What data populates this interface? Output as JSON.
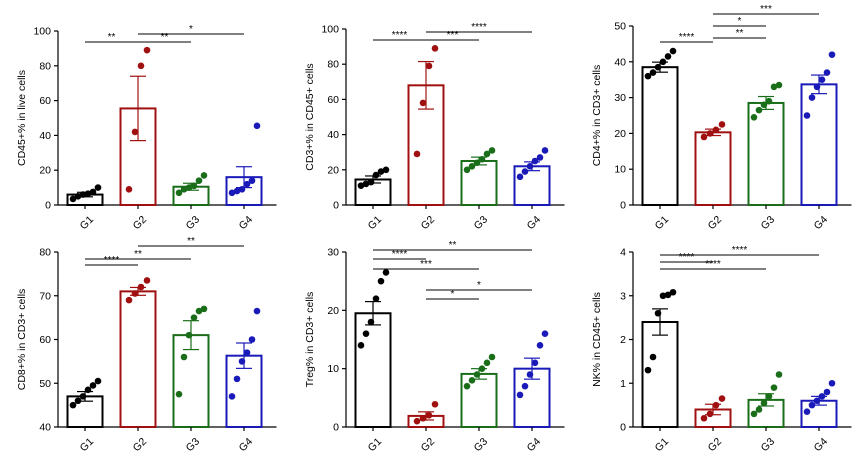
{
  "groups": [
    "G1",
    "G2",
    "G3",
    "G4"
  ],
  "colors": {
    "G1": "#000000",
    "G2": "#a01010",
    "G3": "#1a6e1a",
    "G4": "#1a1ab8"
  },
  "chart_data": [
    {
      "type": "bar",
      "ylabel": "CD45+% in live cells",
      "ylim": [
        0,
        100
      ],
      "yticks": [
        0,
        20,
        40,
        60,
        80,
        100
      ],
      "categories": [
        "G1",
        "G2",
        "G3",
        "G4"
      ],
      "means": [
        6,
        55.5,
        10.5,
        16
      ],
      "sem": [
        1.3,
        18.5,
        2.0,
        6.0
      ],
      "points": [
        [
          3.5,
          5,
          6,
          6.5,
          7.5,
          10
        ],
        [
          9,
          42,
          80,
          89
        ],
        [
          7,
          9,
          10,
          11,
          14,
          17
        ],
        [
          7,
          8,
          9,
          12,
          14,
          45.5
        ]
      ],
      "significance": [
        {
          "from": "G1",
          "to": "G2",
          "label": "**"
        },
        {
          "from": "G2",
          "to": "G3",
          "label": "**"
        },
        {
          "from": "G2",
          "to": "G4",
          "label": "*"
        }
      ]
    },
    {
      "type": "bar",
      "ylabel": "CD3+% in CD45+ cells",
      "ylim": [
        0,
        100
      ],
      "yticks": [
        0,
        20,
        40,
        60,
        80,
        100
      ],
      "categories": [
        "G1",
        "G2",
        "G3",
        "G4"
      ],
      "means": [
        14.5,
        68,
        25,
        22
      ],
      "sem": [
        2.0,
        13.5,
        2.2,
        2.5
      ],
      "points": [
        [
          11,
          12,
          13,
          17,
          19,
          20
        ],
        [
          29,
          58,
          79,
          89
        ],
        [
          20,
          22,
          24,
          26,
          29,
          31
        ],
        [
          16,
          19,
          22,
          25,
          27,
          31
        ]
      ],
      "significance": [
        {
          "from": "G1",
          "to": "G2",
          "label": "****"
        },
        {
          "from": "G2",
          "to": "G3",
          "label": "***"
        },
        {
          "from": "G2",
          "to": "G4",
          "label": "****"
        }
      ]
    },
    {
      "type": "bar",
      "ylabel": "CD4+% in CD3+ cells",
      "ylim": [
        0,
        50
      ],
      "yticks": [
        0,
        10,
        20,
        30,
        40,
        50
      ],
      "categories": [
        "G1",
        "G2",
        "G3",
        "G4"
      ],
      "means": [
        38.5,
        20.3,
        28.5,
        33.7
      ],
      "sem": [
        1.4,
        0.9,
        1.8,
        2.6
      ],
      "points": [
        [
          36,
          37,
          38.5,
          40,
          41.5,
          43
        ],
        [
          19,
          20,
          21,
          22.5
        ],
        [
          24.5,
          26.5,
          28,
          29,
          33,
          33.5
        ],
        [
          25,
          30,
          33,
          35,
          37,
          42
        ]
      ],
      "significance": [
        {
          "from": "G1",
          "to": "G2",
          "label": "****"
        },
        {
          "from": "G2",
          "to": "G3",
          "label": "**"
        },
        {
          "from": "G2",
          "to": "G3",
          "label": "*"
        },
        {
          "from": "G2",
          "to": "G4",
          "label": "***"
        }
      ]
    },
    {
      "type": "bar",
      "ylabel": "CD8+% in CD3+ cells",
      "ylim": [
        40,
        80
      ],
      "yticks": [
        40,
        50,
        60,
        70,
        80
      ],
      "categories": [
        "G1",
        "G2",
        "G3",
        "G4"
      ],
      "means": [
        47,
        71,
        61,
        56.3
      ],
      "sem": [
        1.1,
        0.9,
        3.3,
        2.9
      ],
      "points": [
        [
          45,
          46,
          47,
          48.5,
          49.5,
          50.5
        ],
        [
          69,
          70.5,
          72,
          73.5
        ],
        [
          47.5,
          56,
          61,
          65,
          66.5,
          67
        ],
        [
          47,
          51,
          55,
          57,
          60,
          66.5
        ]
      ],
      "significance": [
        {
          "from": "G1",
          "to": "G2",
          "label": "****"
        },
        {
          "from": "G1",
          "to": "G3",
          "label": "**"
        },
        {
          "from": "G2",
          "to": "G4",
          "label": "**"
        }
      ]
    },
    {
      "type": "bar",
      "ylabel": "Treg% in CD3+ cells",
      "ylim": [
        0,
        30
      ],
      "yticks": [
        0,
        10,
        20,
        30
      ],
      "categories": [
        "G1",
        "G2",
        "G3",
        "G4"
      ],
      "means": [
        19.5,
        1.9,
        9.1,
        10
      ],
      "sem": [
        2.0,
        0.7,
        0.9,
        1.8
      ],
      "points": [
        [
          14,
          16,
          18,
          22,
          25,
          26.5
        ],
        [
          1,
          1.5,
          2,
          3.9
        ],
        [
          7,
          8,
          9,
          10,
          11,
          12
        ],
        [
          5.5,
          7,
          9,
          11,
          14,
          16
        ]
      ],
      "significance": [
        {
          "from": "G1",
          "to": "G2",
          "label": "****"
        },
        {
          "from": "G1",
          "to": "G3",
          "label": "***"
        },
        {
          "from": "G1",
          "to": "G4",
          "label": "**"
        },
        {
          "from": "G2",
          "to": "G3",
          "label": "*"
        },
        {
          "from": "G2",
          "to": "G4",
          "label": "*"
        }
      ]
    },
    {
      "type": "bar",
      "ylabel": "NK% in CD45+ cells",
      "ylim": [
        0,
        4
      ],
      "yticks": [
        0,
        1,
        2,
        3,
        4
      ],
      "categories": [
        "G1",
        "G2",
        "G3",
        "G4"
      ],
      "means": [
        2.4,
        0.4,
        0.62,
        0.6
      ],
      "sem": [
        0.3,
        0.12,
        0.14,
        0.1
      ],
      "points": [
        [
          1.3,
          1.6,
          2.6,
          3.0,
          3.02,
          3.08
        ],
        [
          0.2,
          0.3,
          0.5,
          0.65
        ],
        [
          0.3,
          0.4,
          0.55,
          0.7,
          0.9,
          1.2
        ],
        [
          0.35,
          0.5,
          0.6,
          0.7,
          0.8,
          1.0
        ]
      ],
      "significance": [
        {
          "from": "G1",
          "to": "G2",
          "label": "****"
        },
        {
          "from": "G1",
          "to": "G3",
          "label": "****"
        },
        {
          "from": "G1",
          "to": "G4",
          "label": "****"
        }
      ]
    }
  ]
}
